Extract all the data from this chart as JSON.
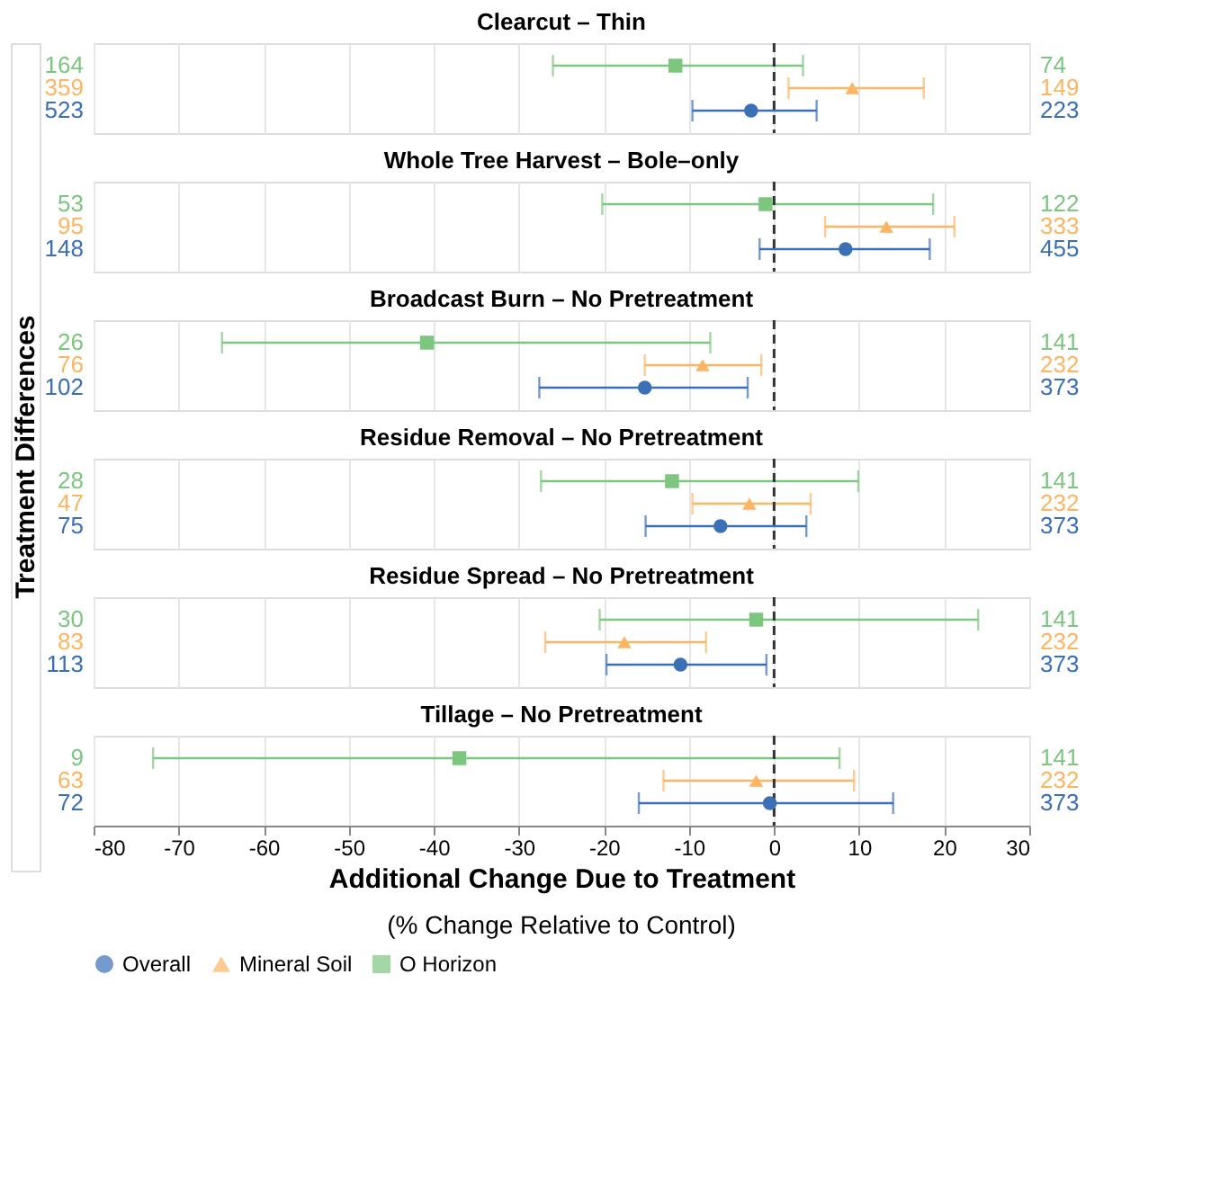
{
  "chart_data": [
    {
      "type": "scatter",
      "orientation": "horizontal",
      "title": "Clearcut – Thin",
      "categories": [
        "164",
        "359",
        "523"
      ],
      "y2_categories": [
        "74",
        "149",
        "223"
      ],
      "xlim": [
        -80,
        30
      ],
      "xticks": [
        -80,
        -70,
        -60,
        -50,
        -40,
        -30,
        -20,
        -10,
        0,
        10,
        20,
        30
      ],
      "grid": "x",
      "tick_labels": "y",
      "ref_lines": [
        {
          "axis": "x",
          "value": 0,
          "line_style": "dashed"
        }
      ],
      "series": [
        {
          "color": "#7dc67f",
          "marker": "square",
          "values": [
            -11.6,
            null,
            null
          ],
          "errors": [
            [
              -26,
              3.4
            ],
            null,
            null
          ]
        },
        {
          "color": "#fcb562",
          "marker": "triangle",
          "values": [
            null,
            9.2,
            null
          ],
          "errors": [
            null,
            [
              1.7,
              17.6
            ],
            null
          ]
        },
        {
          "color": "#3b6fb6",
          "marker": "circle",
          "values": [
            null,
            null,
            -2.7
          ],
          "errors": [
            null,
            null,
            [
              -9.6,
              5.0
            ]
          ]
        }
      ]
    },
    {
      "type": "scatter",
      "orientation": "horizontal",
      "title": "Whole Tree Harvest – Bole–only",
      "categories": [
        "53",
        "95",
        "148"
      ],
      "y2_categories": [
        "122",
        "333",
        "455"
      ],
      "xlim": [
        -80,
        30
      ],
      "xticks": [
        -80,
        -70,
        -60,
        -50,
        -40,
        -30,
        -20,
        -10,
        0,
        10,
        20,
        30
      ],
      "grid": "x",
      "tick_labels": "y",
      "ref_lines": [
        {
          "axis": "x",
          "value": 0,
          "line_style": "dashed"
        }
      ],
      "series": [
        {
          "color": "#7dc67f",
          "marker": "square",
          "values": [
            -1.0,
            null,
            null
          ],
          "errors": [
            [
              -20.2,
              18.7
            ],
            null,
            null
          ]
        },
        {
          "color": "#fcb562",
          "marker": "triangle",
          "values": [
            null,
            13.2,
            null
          ],
          "errors": [
            null,
            [
              6.0,
              21.2
            ],
            null
          ]
        },
        {
          "color": "#3b6fb6",
          "marker": "circle",
          "values": [
            null,
            null,
            8.4
          ],
          "errors": [
            null,
            null,
            [
              -1.7,
              18.3
            ]
          ]
        }
      ]
    },
    {
      "type": "scatter",
      "orientation": "horizontal",
      "title": "Broadcast Burn – No Pretreatment",
      "ylabel": "Treatment Differences",
      "categories": [
        "26",
        "76",
        "102"
      ],
      "y2_categories": [
        "141",
        "232",
        "373"
      ],
      "xlim": [
        -80,
        30
      ],
      "xticks": [
        -80,
        -70,
        -60,
        -50,
        -40,
        -30,
        -20,
        -10,
        0,
        10,
        20,
        30
      ],
      "grid": "x",
      "tick_labels": "y",
      "ref_lines": [
        {
          "axis": "x",
          "value": 0,
          "line_style": "dashed"
        }
      ],
      "series": [
        {
          "color": "#7dc67f",
          "marker": "square",
          "values": [
            -40.8,
            null,
            null
          ],
          "errors": [
            [
              -64.9,
              -7.5
            ],
            null,
            null
          ]
        },
        {
          "color": "#fcb562",
          "marker": "triangle",
          "values": [
            null,
            -8.4,
            null
          ],
          "errors": [
            null,
            [
              -15.2,
              -1.5
            ],
            null
          ]
        },
        {
          "color": "#3b6fb6",
          "marker": "circle",
          "values": [
            null,
            null,
            -15.2
          ],
          "errors": [
            null,
            null,
            [
              -27.6,
              -3.1
            ]
          ]
        }
      ]
    },
    {
      "type": "scatter",
      "orientation": "horizontal",
      "title": "Residue Removal – No Pretreatment",
      "categories": [
        "28",
        "47",
        "75"
      ],
      "y2_categories": [
        "141",
        "232",
        "373"
      ],
      "xlim": [
        -80,
        30
      ],
      "xticks": [
        -80,
        -70,
        -60,
        -50,
        -40,
        -30,
        -20,
        -10,
        0,
        10,
        20,
        30
      ],
      "grid": "x",
      "tick_labels": "y",
      "ref_lines": [
        {
          "axis": "x",
          "value": 0,
          "line_style": "dashed"
        }
      ],
      "series": [
        {
          "color": "#7dc67f",
          "marker": "square",
          "values": [
            -12.0,
            null,
            null
          ],
          "errors": [
            [
              -27.4,
              9.9
            ],
            null,
            null
          ]
        },
        {
          "color": "#fcb562",
          "marker": "triangle",
          "values": [
            null,
            -2.9,
            null
          ],
          "errors": [
            null,
            [
              -9.6,
              4.3
            ],
            null
          ]
        },
        {
          "color": "#3b6fb6",
          "marker": "circle",
          "values": [
            null,
            null,
            -6.3
          ],
          "errors": [
            null,
            null,
            [
              -15.1,
              3.8
            ]
          ]
        }
      ]
    },
    {
      "type": "scatter",
      "orientation": "horizontal",
      "title": "Residue Spread – No Pretreatment",
      "categories": [
        "30",
        "83",
        "113"
      ],
      "y2_categories": [
        "141",
        "232",
        "373"
      ],
      "xlim": [
        -80,
        30
      ],
      "xticks": [
        -80,
        -70,
        -60,
        -50,
        -40,
        -30,
        -20,
        -10,
        0,
        10,
        20,
        30
      ],
      "grid": "x",
      "tick_labels": "y",
      "ref_lines": [
        {
          "axis": "x",
          "value": 0,
          "line_style": "dashed"
        }
      ],
      "series": [
        {
          "color": "#7dc67f",
          "marker": "square",
          "values": [
            -2.1,
            null,
            null
          ],
          "errors": [
            [
              -20.5,
              24.0
            ],
            null,
            null
          ]
        },
        {
          "color": "#fcb562",
          "marker": "triangle",
          "values": [
            null,
            -17.6,
            null
          ],
          "errors": [
            null,
            [
              -26.9,
              -8.0
            ],
            null
          ]
        },
        {
          "color": "#3b6fb6",
          "marker": "circle",
          "values": [
            null,
            null,
            -11.0
          ],
          "errors": [
            null,
            null,
            [
              -19.7,
              -0.9
            ]
          ]
        }
      ]
    },
    {
      "type": "scatter",
      "orientation": "horizontal",
      "title": "Tillage – No Pretreatment",
      "xlabel": "Additional Change Due to Treatment",
      "annotations": [
        "(% Change Relative to Control)"
      ],
      "legend": "bottom",
      "categories": [
        "9",
        "63",
        "72"
      ],
      "y2_categories": [
        "141",
        "232",
        "373"
      ],
      "xlim": [
        -80,
        30
      ],
      "xticks": [
        -80,
        -70,
        -60,
        -50,
        -40,
        -30,
        -20,
        -10,
        0,
        10,
        20,
        30
      ],
      "grid": "x",
      "ref_lines": [
        {
          "axis": "x",
          "value": 0,
          "line_style": "dashed"
        }
      ],
      "series": [
        {
          "name": "O Horizon",
          "color": "#7dc67f",
          "marker": "square",
          "values": [
            -37.0,
            null,
            null
          ],
          "errors": [
            [
              -73.0,
              7.7
            ],
            null,
            null
          ]
        },
        {
          "name": "Mineral Soil",
          "color": "#fcb562",
          "marker": "triangle",
          "values": [
            null,
            -2.1,
            null
          ],
          "errors": [
            null,
            [
              -13.0,
              9.4
            ],
            null
          ]
        },
        {
          "name": "Overall",
          "color": "#3b6fb6",
          "marker": "circle",
          "values": [
            null,
            null,
            -0.5
          ],
          "errors": [
            null,
            null,
            [
              -15.9,
              14.0
            ]
          ]
        }
      ]
    }
  ]
}
